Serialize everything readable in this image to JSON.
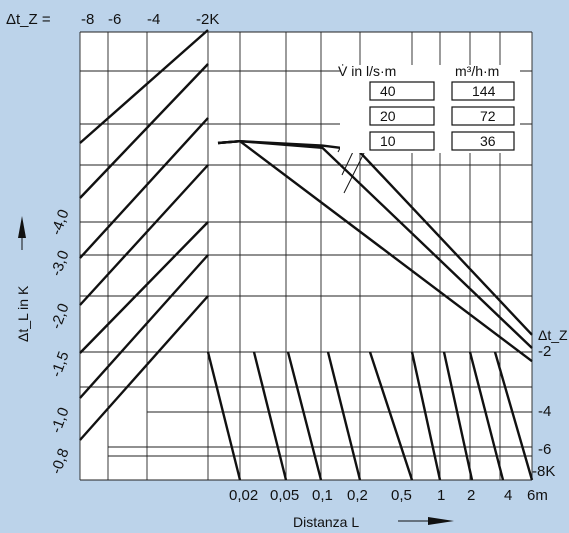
{
  "chart_data": {
    "type": "line",
    "title": "",
    "top_axis": {
      "label": "Δt_Z =",
      "ticks": [
        "-8",
        "-6",
        "-4",
        "-2K"
      ]
    },
    "left_axis": {
      "label": "Δt_L in K",
      "ticks": [
        "-0,8",
        "-1,0",
        "-1,5",
        "-2,0",
        "-3,0",
        "-4,0"
      ]
    },
    "right_axis": {
      "label": "Δt_Z",
      "ticks": [
        "-2",
        "-4",
        "-6",
        "-8K"
      ]
    },
    "x_axis": {
      "label": "Distanza L",
      "ticks": [
        "0,02",
        "0,05",
        "0,1",
        "0,2",
        "0,5",
        "1",
        "2",
        "4",
        "6m"
      ],
      "scale": "log"
    },
    "flow_table": {
      "header_left": "V̇ in  l/s·m",
      "header_right": "m³/h·m",
      "rows": [
        {
          "ls": "40",
          "m3h": "144"
        },
        {
          "ls": "20",
          "m3h": "72"
        },
        {
          "ls": "10",
          "m3h": "36"
        }
      ]
    },
    "series": [
      {
        "name": "40",
        "points": [
          [
            0.02,
            7.7
          ],
          [
            0.1,
            7.6
          ],
          [
            0.2,
            7.5
          ],
          [
            6,
            3.3
          ]
        ]
      },
      {
        "name": "20",
        "points": [
          [
            0.02,
            7.7
          ],
          [
            0.1,
            7.55
          ],
          [
            6,
            3.0
          ]
        ]
      },
      {
        "name": "10",
        "points": [
          [
            0.02,
            7.7
          ],
          [
            6,
            2.7
          ]
        ]
      }
    ]
  }
}
